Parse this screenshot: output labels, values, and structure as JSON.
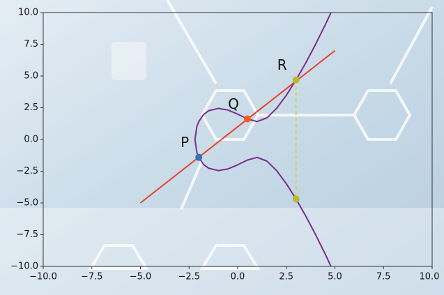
{
  "chart_data": {
    "type": "line",
    "xlim": [
      -10,
      10
    ],
    "ylim": [
      -10,
      10
    ],
    "xticks": [
      {
        "value": -10,
        "label": "−10.0"
      },
      {
        "value": -7.5,
        "label": "−7.5"
      },
      {
        "value": -5,
        "label": "−5.0"
      },
      {
        "value": -2.5,
        "label": "−2.5"
      },
      {
        "value": 0,
        "label": "0.0"
      },
      {
        "value": 2.5,
        "label": "2.5"
      },
      {
        "value": 5,
        "label": "5.0"
      },
      {
        "value": 7.5,
        "label": "7.5"
      },
      {
        "value": 10,
        "label": "10.0"
      }
    ],
    "yticks": [
      {
        "value": -10,
        "label": "−10.0"
      },
      {
        "value": -7.5,
        "label": "−7.5"
      },
      {
        "value": -5,
        "label": "−5.0"
      },
      {
        "value": -2.5,
        "label": "−2.5"
      },
      {
        "value": 0,
        "label": "0.0"
      },
      {
        "value": 2.5,
        "label": "2.5"
      },
      {
        "value": 5,
        "label": "5.0"
      },
      {
        "value": 7.5,
        "label": "7.5"
      },
      {
        "value": 10,
        "label": "10.0"
      }
    ],
    "series": [
      {
        "color": "#7b2d8b",
        "x": [
          4.8,
          4.5,
          4,
          3.5,
          3,
          2.5,
          2,
          1.5,
          1,
          0.5,
          0,
          -0.5,
          -1,
          -1.5,
          -1.75,
          -2,
          -2.1,
          -2.196,
          -2.1,
          -2,
          -1.75,
          -1.5,
          -1,
          -0.5,
          0,
          0.5,
          1,
          1.5,
          2,
          2.5,
          3,
          3.5,
          4,
          4.5,
          4.8
        ],
        "values": [
          -10.0,
          -9.03,
          -7.48,
          -6.03,
          -4.69,
          -3.48,
          -2.45,
          -1.7,
          -1.41,
          -1.62,
          -2,
          -2.32,
          -2.45,
          -2.26,
          -1.97,
          -1.41,
          -1.02,
          0,
          1.02,
          1.41,
          1.97,
          2.26,
          2.45,
          2.32,
          2,
          1.62,
          1.41,
          1.7,
          2.45,
          3.48,
          4.69,
          6.03,
          7.48,
          9.03,
          10.0
        ]
      },
      {
        "color": "#e8412c",
        "x": [
          -5,
          5
        ],
        "values": [
          -5,
          7
        ]
      },
      {
        "color": "#d4d23a",
        "dashed": true,
        "x": [
          3,
          3
        ],
        "values": [
          4.69,
          -4.69
        ]
      }
    ],
    "points": [
      {
        "name": "P",
        "x": -2,
        "y": -1.41,
        "color": "#3b6fb6"
      },
      {
        "name": "Q",
        "x": 0.5,
        "y": 1.62,
        "color": "#ff5a1f"
      },
      {
        "name": "R",
        "x": 3,
        "y": 4.69,
        "color": "#b5bd2a"
      },
      {
        "x": 3,
        "y": -4.69,
        "color": "#b5bd2a"
      }
    ]
  }
}
